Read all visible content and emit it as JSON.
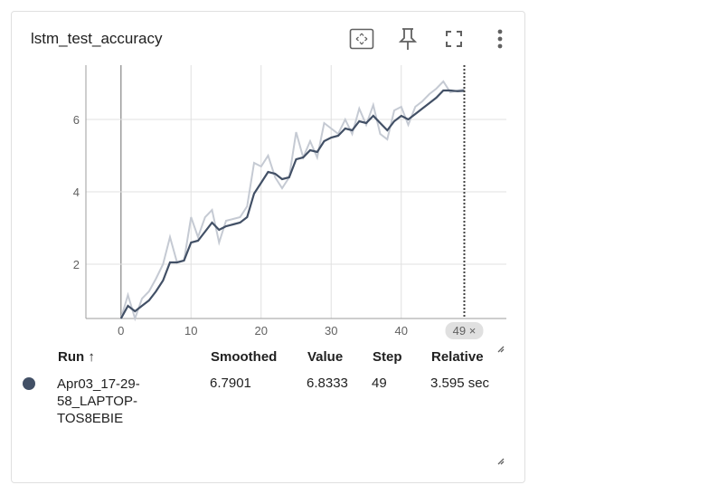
{
  "card": {
    "title": "lstm_test_accuracy"
  },
  "toolbar": {
    "icons": [
      "fit-domain-icon",
      "pin-icon",
      "fullscreen-icon",
      "more-vert-icon"
    ]
  },
  "chart_data": {
    "type": "line",
    "title": "lstm_test_accuracy",
    "xlabel": "",
    "ylabel": "",
    "x_ticks": [
      "0",
      "10",
      "20",
      "30",
      "40"
    ],
    "y_ticks": [
      "2",
      "4",
      "6"
    ],
    "xlim": [
      -5,
      55
    ],
    "ylim": [
      0.5,
      7.5
    ],
    "grid": true,
    "step_marker": {
      "label": "49 ×",
      "x": 49
    },
    "series": [
      {
        "role": "raw",
        "color": "#c5cad3",
        "x": [
          0,
          1,
          2,
          3,
          4,
          5,
          6,
          7,
          8,
          9,
          10,
          11,
          12,
          13,
          14,
          15,
          16,
          17,
          18,
          19,
          20,
          21,
          22,
          23,
          24,
          25,
          26,
          27,
          28,
          29,
          30,
          31,
          32,
          33,
          34,
          35,
          36,
          37,
          38,
          39,
          40,
          41,
          42,
          43,
          44,
          45,
          46,
          47,
          48,
          49
        ],
        "values": [
          0.4,
          1.15,
          0.5,
          1.05,
          1.25,
          1.6,
          2.0,
          2.75,
          2.05,
          2.1,
          3.3,
          2.75,
          3.3,
          3.5,
          2.6,
          3.2,
          3.25,
          3.3,
          3.6,
          4.8,
          4.7,
          5.0,
          4.4,
          4.1,
          4.4,
          5.65,
          4.95,
          5.4,
          4.95,
          5.9,
          5.75,
          5.6,
          6.0,
          5.6,
          6.3,
          5.85,
          6.4,
          5.6,
          5.45,
          6.25,
          6.35,
          5.85,
          6.35,
          6.5,
          6.7,
          6.85,
          7.05,
          6.75,
          6.8,
          6.83
        ]
      },
      {
        "role": "smoothed",
        "color": "#425066",
        "x": [
          0,
          1,
          2,
          3,
          4,
          5,
          6,
          7,
          8,
          9,
          10,
          11,
          12,
          13,
          14,
          15,
          16,
          17,
          18,
          19,
          20,
          21,
          22,
          23,
          24,
          25,
          26,
          27,
          28,
          29,
          30,
          31,
          32,
          33,
          34,
          35,
          36,
          37,
          38,
          39,
          40,
          41,
          42,
          43,
          44,
          45,
          46,
          47,
          48,
          49
        ],
        "values": [
          0.4,
          0.85,
          0.7,
          0.85,
          1.0,
          1.25,
          1.55,
          2.05,
          2.05,
          2.1,
          2.6,
          2.65,
          2.9,
          3.15,
          2.95,
          3.05,
          3.1,
          3.15,
          3.3,
          3.95,
          4.25,
          4.55,
          4.5,
          4.35,
          4.4,
          4.9,
          4.95,
          5.15,
          5.1,
          5.4,
          5.5,
          5.55,
          5.75,
          5.7,
          5.95,
          5.9,
          6.1,
          5.9,
          5.7,
          5.95,
          6.1,
          6.0,
          6.15,
          6.3,
          6.45,
          6.6,
          6.8,
          6.8,
          6.78,
          6.79
        ]
      }
    ]
  },
  "table": {
    "headers": {
      "run": "Run ↑",
      "smoothed": "Smoothed",
      "value": "Value",
      "step": "Step",
      "relative": "Relative"
    },
    "rows": [
      {
        "color": "#425066",
        "run": "Apr03_17-29-58_LAPTOP-TOS8EBIE",
        "smoothed": "6.7901",
        "value": "6.8333",
        "step": "49",
        "relative": "3.595 sec"
      }
    ]
  }
}
